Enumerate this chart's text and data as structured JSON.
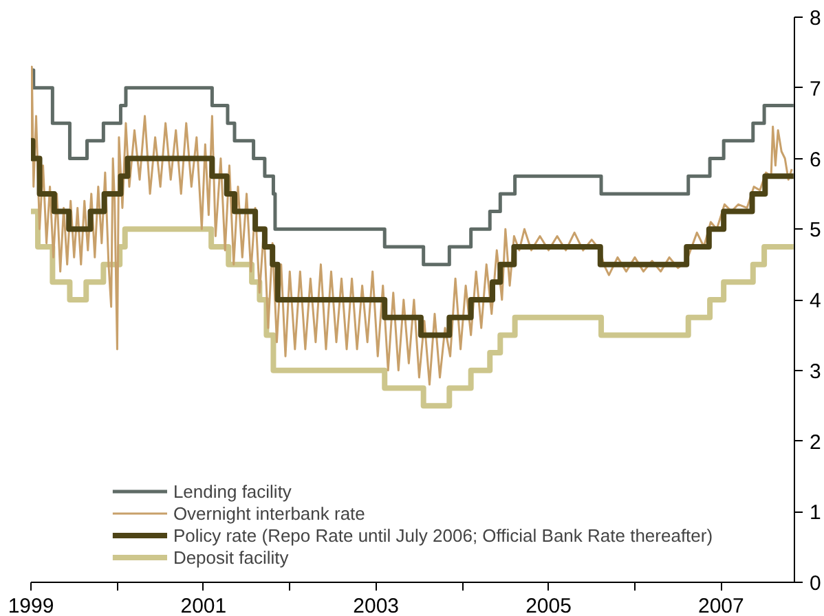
{
  "chart_data": {
    "type": "step",
    "xlim": [
      1999,
      2007.85
    ],
    "ylim": [
      0,
      8
    ],
    "xticks": [
      1999,
      {
        "value": 2000,
        "label": null
      },
      2001,
      {
        "value": 2002,
        "label": null
      },
      2003,
      {
        "value": 2004,
        "label": null
      },
      2005,
      {
        "value": 2006,
        "label": null
      },
      2007
    ],
    "yticks": [
      0,
      1,
      2,
      3,
      4,
      5,
      6,
      7,
      8
    ],
    "grid": false,
    "legend": "bottom",
    "marker": "none",
    "line_style": "solid",
    "series": [
      {
        "name": "Deposit facility",
        "color": "#cdc68c",
        "x": [
          1999.0,
          1999.08,
          1999.25,
          1999.45,
          1999.64,
          1999.84,
          2000.03,
          2000.09,
          2001.09,
          2001.29,
          2001.56,
          2001.65,
          2001.73,
          2001.81,
          2003.1,
          2003.55,
          2003.85,
          2004.1,
          2004.32,
          2004.44,
          2004.61,
          2005.61,
          2006.62,
          2006.87,
          2007.03,
          2007.37,
          2007.5,
          2007.84
        ],
        "values": [
          5.25,
          4.75,
          4.25,
          4.0,
          4.25,
          4.5,
          4.75,
          5.0,
          4.75,
          4.5,
          4.25,
          4.0,
          3.5,
          3.0,
          2.75,
          2.5,
          2.75,
          3.0,
          3.25,
          3.5,
          3.75,
          3.5,
          3.75,
          4.0,
          4.25,
          4.5,
          4.75,
          4.75
        ]
      },
      {
        "name": "Lending facility",
        "color": "#5f6b66",
        "x": [
          1999.0,
          1999.03,
          1999.25,
          1999.45,
          1999.65,
          1999.84,
          2000.04,
          2000.1,
          2001.1,
          2001.28,
          2001.36,
          2001.58,
          2001.71,
          2001.81,
          2001.83,
          2003.1,
          2003.55,
          2003.85,
          2004.1,
          2004.32,
          2004.44,
          2004.61,
          2005.61,
          2006.62,
          2006.87,
          2007.03,
          2007.37,
          2007.5,
          2007.84
        ],
        "values": [
          7.25,
          7.0,
          6.5,
          6.0,
          6.25,
          6.5,
          6.75,
          7.0,
          6.75,
          6.5,
          6.25,
          6.0,
          5.75,
          5.5,
          5.0,
          4.75,
          4.5,
          4.75,
          5.0,
          5.25,
          5.5,
          5.75,
          5.5,
          5.75,
          6.0,
          6.25,
          6.5,
          6.75,
          6.75
        ]
      },
      {
        "name": "Overnight interbank rate",
        "color": "#c8a06a",
        "type": "line",
        "x": [
          1999.0,
          1999.01,
          1999.03,
          1999.06,
          1999.1,
          1999.14,
          1999.18,
          1999.22,
          1999.26,
          1999.3,
          1999.34,
          1999.38,
          1999.42,
          1999.46,
          1999.5,
          1999.54,
          1999.58,
          1999.62,
          1999.66,
          1999.7,
          1999.74,
          1999.78,
          1999.82,
          1999.86,
          1999.9,
          1999.93,
          1999.95,
          1999.97,
          2000.0,
          2000.02,
          2000.06,
          2000.1,
          2000.14,
          2000.2,
          2000.26,
          2000.32,
          2000.38,
          2000.44,
          2000.5,
          2000.56,
          2000.62,
          2000.68,
          2000.74,
          2000.8,
          2000.86,
          2000.92,
          2000.98,
          2001.02,
          2001.06,
          2001.1,
          2001.14,
          2001.2,
          2001.25,
          2001.3,
          2001.35,
          2001.4,
          2001.45,
          2001.5,
          2001.55,
          2001.6,
          2001.65,
          2001.7,
          2001.75,
          2001.8,
          2001.85,
          2001.9,
          2001.95,
          2002.0,
          2002.06,
          2002.12,
          2002.18,
          2002.24,
          2002.3,
          2002.36,
          2002.42,
          2002.48,
          2002.54,
          2002.6,
          2002.66,
          2002.72,
          2002.78,
          2002.84,
          2002.9,
          2002.96,
          2003.02,
          2003.08,
          2003.14,
          2003.2,
          2003.26,
          2003.32,
          2003.38,
          2003.44,
          2003.5,
          2003.56,
          2003.62,
          2003.68,
          2003.74,
          2003.8,
          2003.86,
          2003.92,
          2003.98,
          2004.04,
          2004.1,
          2004.16,
          2004.22,
          2004.28,
          2004.34,
          2004.4,
          2004.46,
          2004.5,
          2004.55,
          2004.6,
          2004.66,
          2004.72,
          2004.8,
          2004.9,
          2005.0,
          2005.1,
          2005.2,
          2005.3,
          2005.4,
          2005.5,
          2005.6,
          2005.64,
          2005.7,
          2005.8,
          2005.9,
          2006.0,
          2006.1,
          2006.2,
          2006.3,
          2006.4,
          2006.5,
          2006.6,
          2006.66,
          2006.72,
          2006.8,
          2006.88,
          2006.95,
          2007.04,
          2007.12,
          2007.2,
          2007.3,
          2007.38,
          2007.45,
          2007.52,
          2007.58,
          2007.6,
          2007.63,
          2007.66,
          2007.7,
          2007.74,
          2007.78,
          2007.82
        ],
        "values": [
          6.2,
          7.3,
          5.6,
          6.6,
          5.0,
          5.9,
          4.8,
          5.6,
          4.6,
          5.5,
          4.4,
          5.3,
          4.5,
          5.4,
          4.6,
          5.3,
          4.5,
          5.4,
          4.7,
          5.5,
          4.6,
          5.6,
          4.8,
          5.8,
          4.5,
          3.9,
          6.0,
          5.4,
          3.3,
          6.3,
          5.3,
          6.5,
          5.6,
          6.4,
          5.7,
          6.6,
          5.5,
          6.3,
          5.6,
          6.5,
          5.7,
          6.4,
          5.5,
          6.5,
          5.6,
          6.3,
          5.0,
          6.2,
          5.2,
          6.6,
          4.9,
          6.0,
          4.7,
          5.9,
          4.5,
          5.6,
          4.6,
          5.5,
          4.4,
          5.3,
          4.1,
          5.0,
          3.6,
          4.8,
          3.4,
          4.5,
          3.2,
          4.4,
          3.3,
          4.4,
          3.3,
          4.3,
          3.4,
          4.5,
          3.3,
          4.4,
          3.4,
          4.3,
          3.3,
          4.3,
          3.3,
          4.2,
          3.4,
          4.4,
          3.2,
          4.2,
          3.0,
          4.1,
          3.0,
          4.0,
          3.1,
          4.0,
          2.9,
          3.7,
          2.8,
          3.8,
          2.9,
          3.6,
          3.2,
          4.3,
          3.3,
          4.2,
          3.5,
          4.4,
          3.6,
          4.5,
          3.8,
          4.7,
          4.0,
          5.0,
          4.2,
          4.9,
          4.7,
          5.0,
          4.7,
          4.9,
          4.7,
          4.9,
          4.7,
          4.95,
          4.7,
          4.85,
          4.7,
          4.5,
          4.35,
          4.6,
          4.4,
          4.6,
          4.4,
          4.55,
          4.4,
          4.6,
          4.45,
          4.55,
          4.75,
          4.95,
          4.75,
          5.1,
          5.0,
          5.35,
          5.25,
          5.35,
          5.3,
          5.6,
          5.55,
          5.8,
          5.75,
          6.45,
          5.9,
          6.4,
          6.1,
          6.0,
          5.7,
          5.85
        ]
      },
      {
        "name": "Policy rate (Repo Rate until July 2006; Official Bank Rate thereafter)",
        "color": "#4d4416",
        "x": [
          1999.0,
          1999.02,
          1999.1,
          1999.27,
          1999.44,
          1999.69,
          1999.85,
          2000.04,
          2000.12,
          2001.1,
          2001.27,
          2001.36,
          2001.6,
          2001.71,
          2001.8,
          2001.86,
          2003.1,
          2003.52,
          2003.85,
          2004.1,
          2004.35,
          2004.44,
          2004.6,
          2005.6,
          2006.6,
          2006.86,
          2007.03,
          2007.36,
          2007.51,
          2007.84
        ],
        "values": [
          6.25,
          6.0,
          5.5,
          5.25,
          5.0,
          5.25,
          5.5,
          5.75,
          6.0,
          5.75,
          5.5,
          5.25,
          5.0,
          4.75,
          4.5,
          4.0,
          3.75,
          3.5,
          3.75,
          4.0,
          4.25,
          4.5,
          4.75,
          4.5,
          4.75,
          5.0,
          5.25,
          5.5,
          5.75,
          5.75
        ]
      }
    ]
  }
}
